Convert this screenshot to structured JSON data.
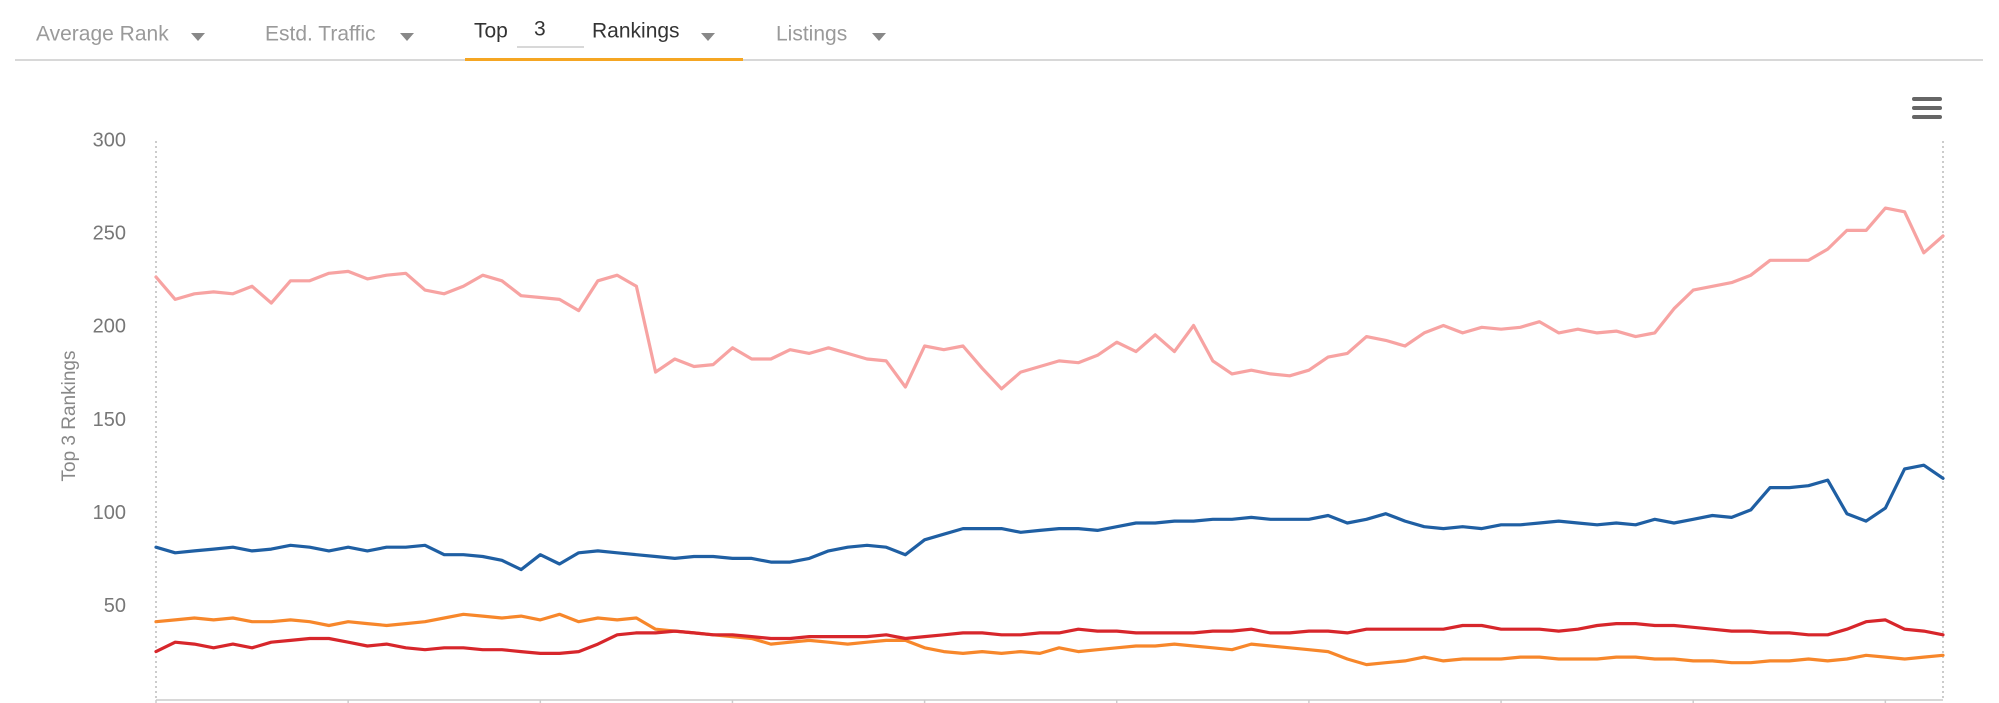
{
  "tabs": [
    {
      "label": "Average Rank"
    },
    {
      "label": "Estd. Traffic"
    },
    {
      "label": "Top",
      "value": "3",
      "suffix": "Rankings"
    },
    {
      "label": "Listings"
    }
  ],
  "chart_data": {
    "type": "line",
    "y_label": "Top 3 Rankings",
    "ylim": [
      0,
      300
    ],
    "yticks": [
      50,
      100,
      150,
      200,
      250,
      300
    ],
    "grid": false,
    "categories": [
      null,
      null,
      null,
      null,
      null,
      null,
      null,
      null,
      null,
      null,
      null,
      null,
      null,
      null,
      null,
      null,
      null,
      null,
      null,
      null,
      null,
      null,
      null,
      null,
      null,
      null,
      null,
      null,
      null,
      null,
      null,
      null,
      null,
      null,
      null,
      null,
      null,
      null,
      null,
      null,
      null,
      null,
      null,
      null,
      null,
      null,
      null,
      null,
      null,
      null,
      null,
      null,
      null,
      null,
      null,
      null,
      null,
      null,
      null,
      null,
      null,
      null,
      null,
      null,
      null,
      null,
      null,
      null,
      null,
      null,
      null,
      null,
      null,
      null,
      null,
      null,
      null,
      null,
      null,
      null,
      null,
      null,
      null,
      null,
      null,
      null,
      null,
      null,
      null,
      null,
      null,
      null,
      null,
      null
    ],
    "series": [
      {
        "color": "#f7a3a2",
        "values": [
          227,
          215,
          218,
          219,
          218,
          222,
          213,
          225,
          225,
          229,
          230,
          226,
          228,
          229,
          220,
          218,
          222,
          228,
          225,
          217,
          216,
          215,
          209,
          225,
          228,
          222,
          176,
          183,
          179,
          180,
          189,
          183,
          183,
          188,
          186,
          189,
          186,
          183,
          182,
          168,
          190,
          188,
          190,
          178,
          167,
          176,
          179,
          182,
          181,
          185,
          192,
          187,
          196,
          187,
          201,
          182,
          175,
          177,
          175,
          174,
          177,
          184,
          186,
          195,
          193,
          190,
          197,
          201,
          197,
          200,
          199,
          200,
          203,
          197,
          199,
          197,
          198,
          195,
          197,
          210,
          220,
          222,
          224,
          228,
          236,
          236,
          236,
          242,
          252,
          252,
          264,
          262,
          240,
          249
        ]
      },
      {
        "color": "#1f5fa3",
        "values": [
          82,
          79,
          80,
          81,
          82,
          80,
          81,
          83,
          82,
          80,
          82,
          80,
          82,
          82,
          83,
          78,
          78,
          77,
          75,
          70,
          78,
          73,
          79,
          80,
          79,
          78,
          77,
          76,
          77,
          77,
          76,
          76,
          74,
          74,
          76,
          80,
          82,
          83,
          82,
          78,
          86,
          89,
          92,
          92,
          92,
          90,
          91,
          92,
          92,
          91,
          93,
          95,
          95,
          96,
          96,
          97,
          97,
          98,
          97,
          97,
          97,
          99,
          95,
          97,
          100,
          96,
          93,
          92,
          93,
          92,
          94,
          94,
          95,
          96,
          95,
          94,
          95,
          94,
          97,
          95,
          97,
          99,
          98,
          102,
          114,
          114,
          115,
          118,
          100,
          96,
          103,
          124,
          126,
          119
        ]
      },
      {
        "color": "#f7872b",
        "values": [
          42,
          43,
          44,
          43,
          44,
          42,
          42,
          43,
          42,
          40,
          42,
          41,
          40,
          41,
          42,
          44,
          46,
          45,
          44,
          45,
          43,
          46,
          42,
          44,
          43,
          44,
          38,
          37,
          36,
          35,
          34,
          33,
          30,
          31,
          32,
          31,
          30,
          31,
          32,
          32,
          28,
          26,
          25,
          26,
          25,
          26,
          25,
          28,
          26,
          27,
          28,
          29,
          29,
          30,
          29,
          28,
          27,
          30,
          29,
          28,
          27,
          26,
          22,
          19,
          20,
          21,
          23,
          21,
          22,
          22,
          22,
          23,
          23,
          22,
          22,
          22,
          23,
          23,
          22,
          22,
          21,
          21,
          20,
          20,
          21,
          21,
          22,
          21,
          22,
          24,
          23,
          22,
          23,
          24
        ]
      },
      {
        "color": "#d7262b",
        "values": [
          26,
          31,
          30,
          28,
          30,
          28,
          31,
          32,
          33,
          33,
          31,
          29,
          30,
          28,
          27,
          28,
          28,
          27,
          27,
          26,
          25,
          25,
          26,
          30,
          35,
          36,
          36,
          37,
          36,
          35,
          35,
          34,
          33,
          33,
          34,
          34,
          34,
          34,
          35,
          33,
          34,
          35,
          36,
          36,
          35,
          35,
          36,
          36,
          38,
          37,
          37,
          36,
          36,
          36,
          36,
          37,
          37,
          38,
          36,
          36,
          37,
          37,
          36,
          38,
          38,
          38,
          38,
          38,
          40,
          40,
          38,
          38,
          38,
          37,
          38,
          40,
          41,
          41,
          40,
          40,
          39,
          38,
          37,
          37,
          36,
          36,
          35,
          35,
          38,
          42,
          43,
          38,
          37,
          35
        ]
      }
    ]
  }
}
